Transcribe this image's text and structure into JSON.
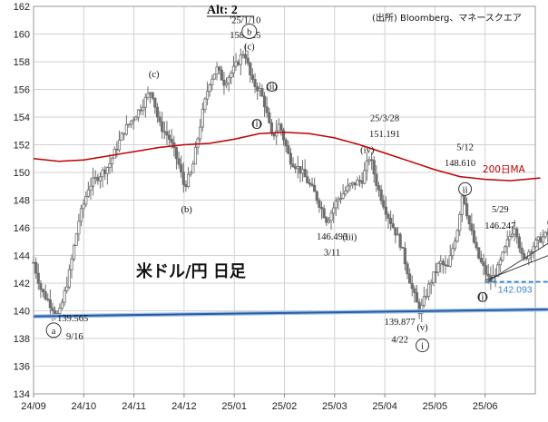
{
  "chart_data": {
    "type": "candlestick",
    "title": "Alt: 2",
    "source": "(出所) Bloomberg、マネースクエア",
    "big_label": "米ドル/円 日足",
    "y_ticks": [
      134,
      136,
      138,
      140,
      142,
      144,
      146,
      148,
      150,
      152,
      154,
      156,
      158,
      160,
      162
    ],
    "ylim": [
      134,
      162
    ],
    "x_ticks": [
      "24/09",
      "24/10",
      "24/11",
      "24/12",
      "25/01",
      "25/02",
      "25/03",
      "25/04",
      "25/05",
      "25/06"
    ],
    "price_path": [
      [
        0,
        143.5
      ],
      [
        0.15,
        141.5
      ],
      [
        0.5,
        139.565
      ],
      [
        0.7,
        142.5
      ],
      [
        0.9,
        146.5
      ],
      [
        1.1,
        149
      ],
      [
        1.5,
        150.5
      ],
      [
        1.8,
        153
      ],
      [
        2.1,
        154.5
      ],
      [
        2.35,
        156
      ],
      [
        2.5,
        153.5
      ],
      [
        2.7,
        152.5
      ],
      [
        2.9,
        150.5
      ],
      [
        3.0,
        149
      ],
      [
        3.15,
        150
      ],
      [
        3.35,
        154
      ],
      [
        3.5,
        156.5
      ],
      [
        3.65,
        157.5
      ],
      [
        3.8,
        156.5
      ],
      [
        4.0,
        157.5
      ],
      [
        4.2,
        158.825
      ],
      [
        4.35,
        156.5
      ],
      [
        4.5,
        156
      ],
      [
        4.6,
        155
      ],
      [
        4.75,
        152.5
      ],
      [
        4.9,
        153.5
      ],
      [
        5.1,
        151
      ],
      [
        5.35,
        150
      ],
      [
        5.6,
        148.5
      ],
      [
        5.85,
        146.493
      ],
      [
        6.05,
        148
      ],
      [
        6.3,
        149
      ],
      [
        6.55,
        149.5
      ],
      [
        6.7,
        151.191
      ],
      [
        6.85,
        149
      ],
      [
        7.05,
        147
      ],
      [
        7.3,
        145
      ],
      [
        7.55,
        141.5
      ],
      [
        7.7,
        139.877
      ],
      [
        7.9,
        142
      ],
      [
        8.1,
        143.5
      ],
      [
        8.25,
        143
      ],
      [
        8.45,
        146
      ],
      [
        8.55,
        148.61
      ],
      [
        8.7,
        146
      ],
      [
        8.85,
        144
      ],
      [
        9.1,
        142.093
      ],
      [
        9.25,
        143
      ],
      [
        9.5,
        145.5
      ],
      [
        9.6,
        146.247
      ],
      [
        9.75,
        143.5
      ],
      [
        9.9,
        144.5
      ],
      [
        10.1,
        145.2
      ],
      [
        10.25,
        145.5
      ]
    ],
    "ma200": [
      [
        0,
        151.0
      ],
      [
        0.5,
        150.8
      ],
      [
        1,
        150.9
      ],
      [
        1.5,
        151.2
      ],
      [
        2,
        151.5
      ],
      [
        2.5,
        151.8
      ],
      [
        3,
        152.0
      ],
      [
        3.5,
        152.1
      ],
      [
        4,
        152.4
      ],
      [
        4.5,
        152.8
      ],
      [
        5,
        152.9
      ],
      [
        5.5,
        152.8
      ],
      [
        6,
        152.5
      ],
      [
        6.5,
        152.0
      ],
      [
        7,
        151.4
      ],
      [
        7.5,
        150.8
      ],
      [
        8,
        150.2
      ],
      [
        8.5,
        149.7
      ],
      [
        9,
        149.5
      ],
      [
        9.5,
        149.4
      ],
      [
        10.1,
        149.6
      ]
    ],
    "lower_trendline": [
      [
        0,
        139.6
      ],
      [
        10.25,
        140.1
      ]
    ],
    "wedge_lines": [
      [
        [
          9.0,
          142.2
        ],
        [
          10.4,
          144.2
        ]
      ],
      [
        [
          9.0,
          142.0
        ],
        [
          10.4,
          145.2
        ]
      ]
    ],
    "support_level": {
      "value": 142.093,
      "from": 9.0,
      "to": 10.35
    },
    "colors": {
      "candles": "#6e6e6e",
      "ma200": "#c00000",
      "trendline": "#2a5aa0",
      "support": "#3a86d0"
    },
    "annotations": [
      {
        "text": "139.565",
        "x": 0.78,
        "y": 139.25
      },
      {
        "text": "9/16",
        "x": 0.82,
        "y": 137.95
      },
      {
        "text": "'25/1/10",
        "x": 4.22,
        "y": 160.8
      },
      {
        "text": "158.825",
        "x": 4.22,
        "y": 159.7
      },
      {
        "text": "146.493",
        "x": 5.95,
        "y": 145.15
      },
      {
        "text": "3/11",
        "x": 5.95,
        "y": 144.0
      },
      {
        "text": "25/3/28",
        "x": 7.0,
        "y": 153.7
      },
      {
        "text": "151.191",
        "x": 7.0,
        "y": 152.55
      },
      {
        "text": "5/12",
        "x": 8.6,
        "y": 151.6
      },
      {
        "text": "148.610",
        "x": 8.5,
        "y": 150.45
      },
      {
        "text": "5/29",
        "x": 9.3,
        "y": 147.1
      },
      {
        "text": "146.247",
        "x": 9.3,
        "y": 145.95
      },
      {
        "text": "139.877",
        "x": 7.3,
        "y": 139.0
      },
      {
        "text": "4/22",
        "x": 7.3,
        "y": 137.7
      }
    ],
    "wave_labels": [
      {
        "text": "(c)",
        "x": 2.4,
        "y": 156.9
      },
      {
        "text": "(c)",
        "x": 4.3,
        "y": 158.9
      },
      {
        "text": "(b)",
        "x": 3.05,
        "y": 147.1
      },
      {
        "text": "(iii)",
        "x": 6.3,
        "y": 145.1
      },
      {
        "text": "(iv)",
        "x": 6.65,
        "y": 151.4
      },
      {
        "text": "(v)",
        "x": 7.75,
        "y": 138.6
      },
      {
        "text": "(ii)",
        "x": 10.35,
        "y": 146.2
      }
    ],
    "circle_labels": [
      {
        "text": "(ii)",
        "x": 4.75,
        "y": 156.2,
        "r": 5
      },
      {
        "text": "(i)",
        "x": 4.45,
        "y": 153.5,
        "r": 5
      },
      {
        "text": "(i)",
        "x": 8.95,
        "y": 141.0,
        "r": 5
      },
      {
        "text": "a",
        "x": 0.4,
        "y": 138.6,
        "r": 8
      },
      {
        "text": "b",
        "x": 4.3,
        "y": 160.2,
        "r": 8
      },
      {
        "text": "i",
        "x": 7.75,
        "y": 137.5,
        "r": 7
      },
      {
        "text": "ii",
        "x": 8.6,
        "y": 148.8,
        "r": 7
      }
    ],
    "ma_label": "200日MA",
    "support_label": "142.093"
  }
}
